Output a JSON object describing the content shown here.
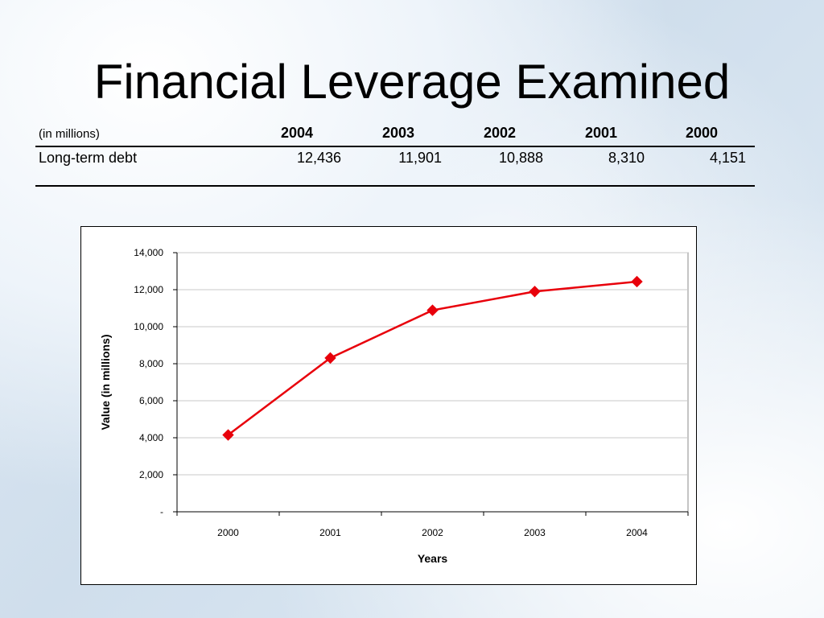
{
  "slide": {
    "title": "Financial Leverage Examined"
  },
  "table": {
    "unit_label": "(in millions)",
    "years": [
      "2004",
      "2003",
      "2002",
      "2001",
      "2000"
    ],
    "rows": [
      {
        "label": "Long-term debt",
        "values": [
          "12,436",
          "11,901",
          "10,888",
          "8,310",
          "4,151"
        ]
      }
    ]
  },
  "chart_data": {
    "type": "line",
    "x": [
      "2000",
      "2001",
      "2002",
      "2003",
      "2004"
    ],
    "series": [
      {
        "values": [
          4151,
          8310,
          10888,
          11901,
          12436
        ],
        "color": "#e8000b",
        "marker": "diamond"
      }
    ],
    "xlabel": "Years",
    "ylabel": "Value (in millions)",
    "ylim": [
      0,
      14000
    ],
    "yticks": [
      0,
      2000,
      4000,
      6000,
      8000,
      10000,
      12000,
      14000
    ],
    "ytick_labels": [
      "-",
      "2,000",
      "4,000",
      "6,000",
      "8,000",
      "10,000",
      "12,000",
      "14,000"
    ],
    "grid": true,
    "legend": "none"
  }
}
